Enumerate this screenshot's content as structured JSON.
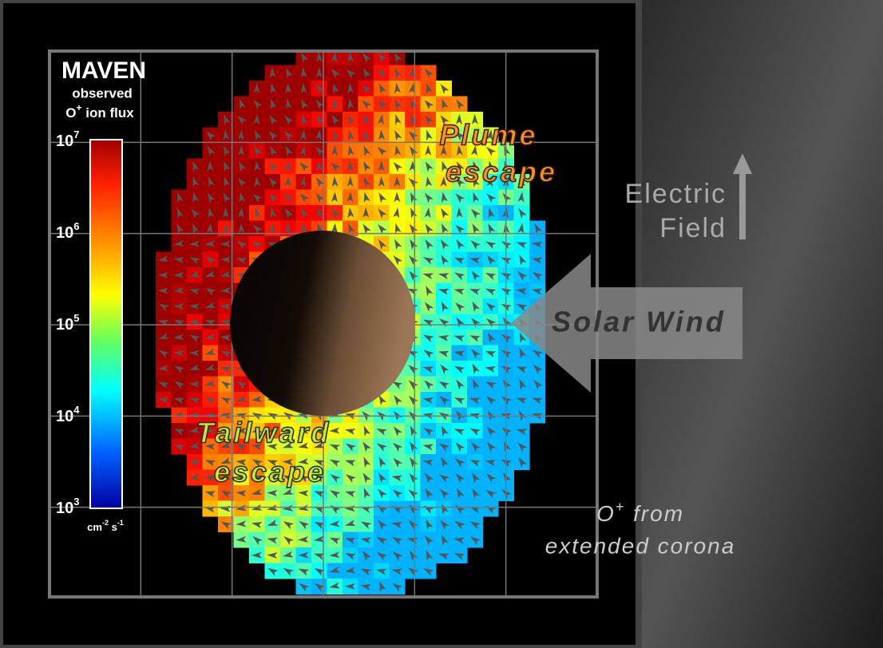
{
  "header": {
    "title": "MAVEN",
    "subtitle": "observed",
    "quantity": {
      "species": "O",
      "charge": "+",
      "rest": " ion flux"
    }
  },
  "colorbar": {
    "ticks": [
      {
        "base": "10",
        "exponent": "7"
      },
      {
        "base": "10",
        "exponent": "6"
      },
      {
        "base": "10",
        "exponent": "5"
      },
      {
        "base": "10",
        "exponent": "4"
      },
      {
        "base": "10",
        "exponent": "3"
      }
    ],
    "units": {
      "a": "cm",
      "a_exp": "-2",
      "b": " s",
      "b_exp": "-1"
    }
  },
  "annotations": {
    "plume": [
      "Plume",
      "escape"
    ],
    "tailward": [
      "Tailward",
      "escape"
    ],
    "electric_field": [
      "Electric",
      "Field"
    ],
    "solar_wind": "Solar Wind",
    "corona": {
      "species": "O",
      "charge": "+",
      "line1_rest": " from",
      "line2": "extended corona"
    }
  }
}
